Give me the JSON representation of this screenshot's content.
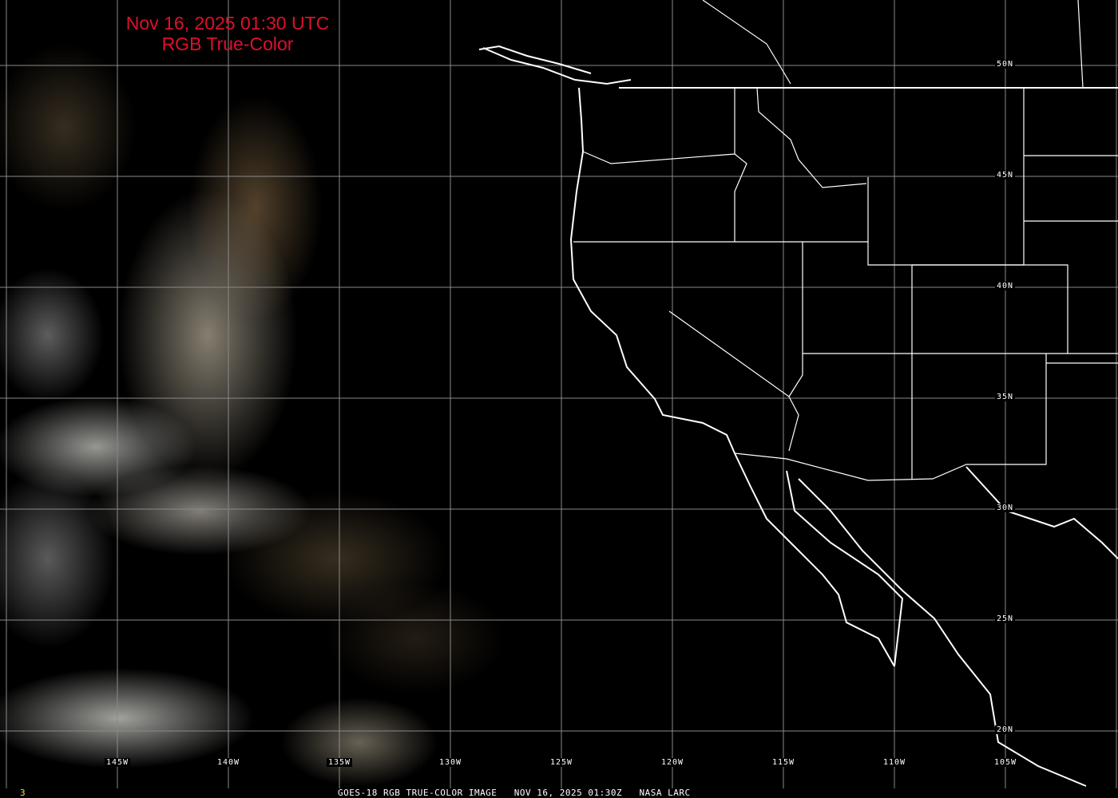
{
  "title": {
    "line1": "Nov 16, 2025 01:30 UTC",
    "line2": "RGB True-Color"
  },
  "longitude_labels": [
    "145W",
    "140W",
    "135W",
    "130W",
    "125W",
    "120W",
    "115W",
    "110W",
    "105W"
  ],
  "latitude_labels": [
    "50N",
    "45N",
    "40N",
    "35N",
    "30N",
    "25N",
    "20N"
  ],
  "footer": {
    "frame_number": "3",
    "caption": "GOES-18 RGB TRUE-COLOR IMAGE   NOV 16, 2025 01:30Z   NASA LARC"
  },
  "colors": {
    "title": "#e0102a",
    "frame_number": "#e8e060",
    "grid": "#8a8a8a",
    "coastline": "#ffffff"
  }
}
